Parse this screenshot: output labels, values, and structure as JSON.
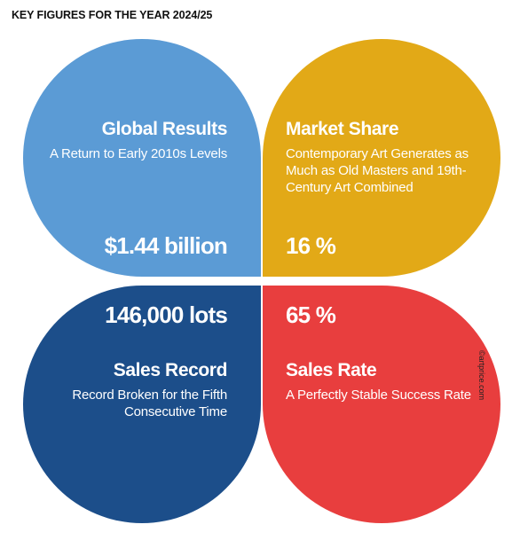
{
  "header": {
    "title": "KEY FIGURES FOR THE YEAR 2024/25"
  },
  "cards": [
    {
      "title": "Global Results",
      "subtitle": "A Return to Early 2010s Levels",
      "figure": "$1.44 billion",
      "color": "#5b9bd5"
    },
    {
      "title": "Market Share",
      "subtitle": "Contemporary Art Generates as Much as Old Masters and 19th-Century Art Combined",
      "figure": "16 %",
      "color": "#e2a917"
    },
    {
      "title": "Sales Record",
      "subtitle": "Record Broken for the Fifth Consecutive Time",
      "figure": "146,000 lots",
      "color": "#1c4e8a"
    },
    {
      "title": "Sales Rate",
      "subtitle": "A Perfectly Stable Success Rate",
      "figure": "65 %",
      "color": "#e83e3e"
    }
  ],
  "credit": "©artprice.com"
}
